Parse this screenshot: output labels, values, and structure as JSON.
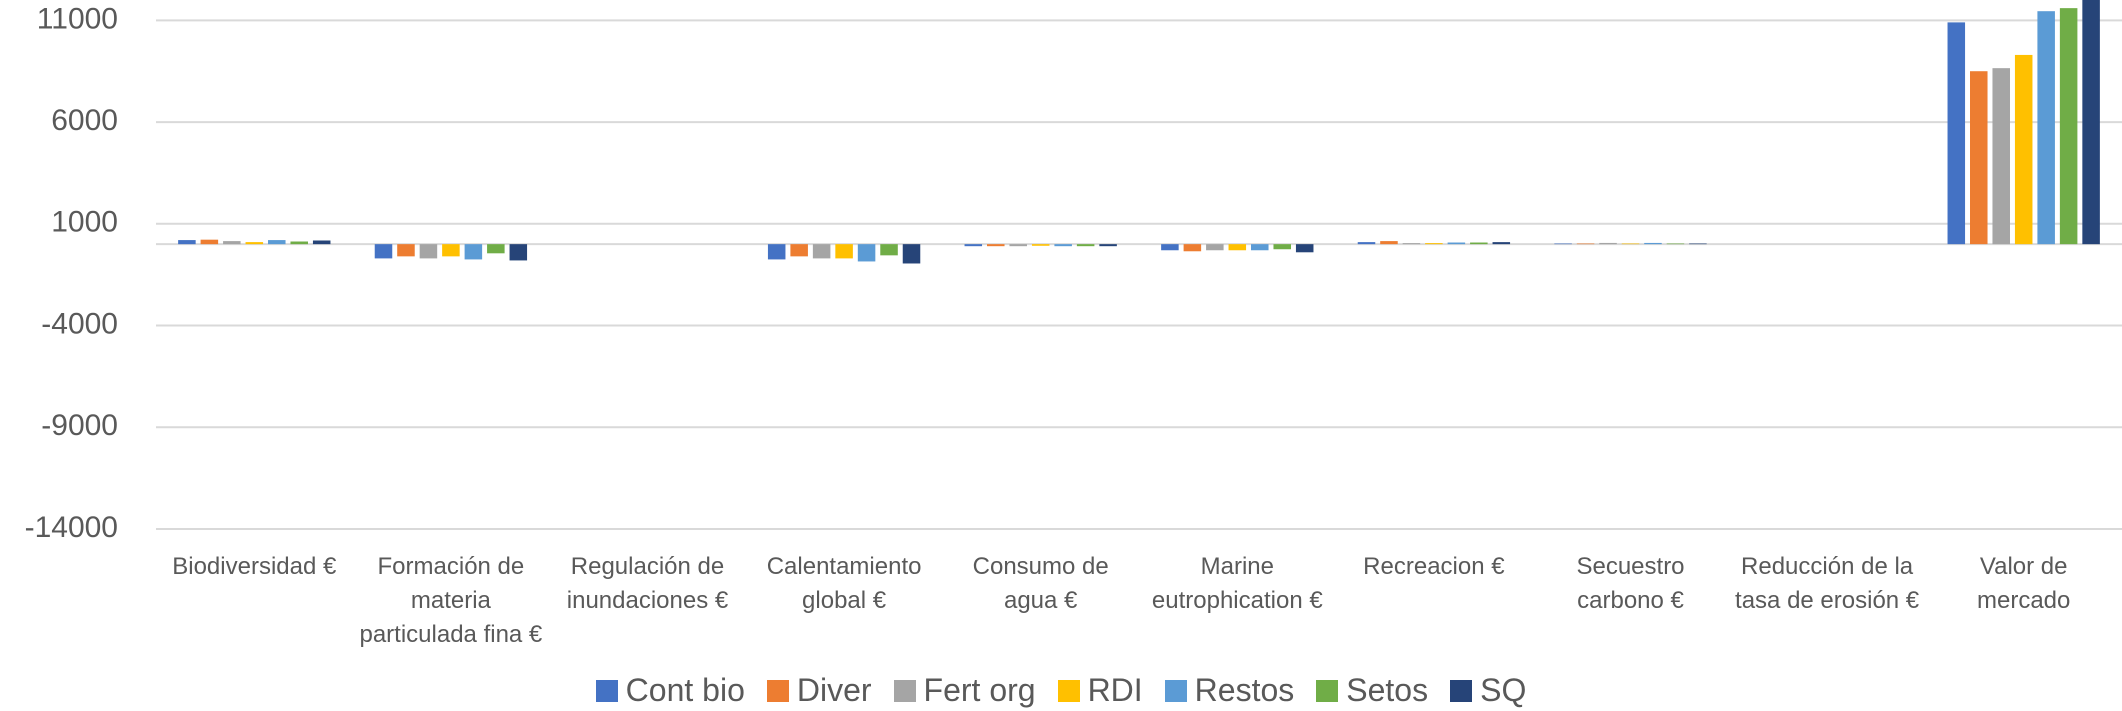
{
  "chart_data": {
    "type": "bar",
    "categories": [
      "Biodiversidad €",
      "Formación de materia particulada fina €",
      "Regulación de inundaciones €",
      "Calentamiento global €",
      "Consumo de agua €",
      "Marine eutrophication €",
      "Recreacion €",
      "Secuestro carbono €",
      "Reducción de la tasa de erosión €",
      "Valor de mercado"
    ],
    "series": [
      {
        "name": "Cont bio",
        "color": "#4472c4",
        "values": [
          200,
          -700,
          0,
          -750,
          -100,
          -300,
          100,
          30,
          0,
          10900
        ]
      },
      {
        "name": "Diver",
        "color": "#ed7d31",
        "values": [
          220,
          -600,
          0,
          -600,
          -100,
          -350,
          150,
          30,
          0,
          8500
        ]
      },
      {
        "name": "Fert org",
        "color": "#a5a5a5",
        "values": [
          150,
          -700,
          0,
          -700,
          -100,
          -300,
          50,
          60,
          0,
          8650
        ]
      },
      {
        "name": "RDI",
        "color": "#ffc000",
        "values": [
          100,
          -600,
          0,
          -700,
          -80,
          -300,
          50,
          30,
          0,
          9300
        ]
      },
      {
        "name": "Restos",
        "color": "#5b9bd5",
        "values": [
          200,
          -750,
          0,
          -850,
          -100,
          -300,
          80,
          60,
          0,
          11450
        ]
      },
      {
        "name": "Setos",
        "color": "#70ad47",
        "values": [
          130,
          -450,
          0,
          -550,
          -100,
          -250,
          80,
          30,
          0,
          11600
        ]
      },
      {
        "name": "SQ",
        "color": "#264478",
        "values": [
          180,
          -800,
          0,
          -950,
          -100,
          -400,
          100,
          30,
          0,
          12500
        ]
      }
    ],
    "ylim": [
      -14000,
      12000
    ],
    "yticks": [
      -14000,
      -9000,
      -4000,
      1000,
      6000,
      11000
    ],
    "grid": true,
    "legend": "bottom"
  }
}
